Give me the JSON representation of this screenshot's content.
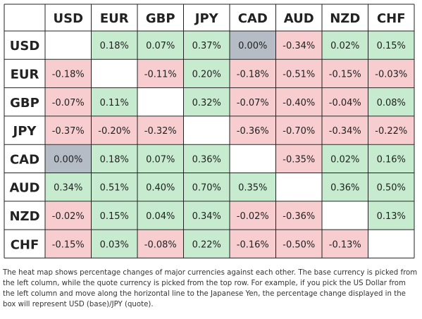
{
  "chart_data": {
    "type": "heatmap",
    "columns": [
      "USD",
      "EUR",
      "GBP",
      "JPY",
      "CAD",
      "AUD",
      "NZD",
      "CHF"
    ],
    "rows": [
      "USD",
      "EUR",
      "GBP",
      "JPY",
      "CAD",
      "AUD",
      "NZD",
      "CHF"
    ],
    "values": [
      [
        null,
        0.18,
        0.07,
        0.37,
        0.0,
        -0.34,
        0.02,
        0.15
      ],
      [
        -0.18,
        null,
        -0.11,
        0.2,
        -0.18,
        -0.51,
        -0.15,
        -0.03
      ],
      [
        -0.07,
        0.11,
        null,
        0.32,
        -0.07,
        -0.4,
        -0.04,
        0.08
      ],
      [
        -0.37,
        -0.2,
        -0.32,
        null,
        -0.36,
        -0.7,
        -0.34,
        -0.22
      ],
      [
        0.0,
        0.18,
        0.07,
        0.36,
        null,
        -0.35,
        0.02,
        0.16
      ],
      [
        0.34,
        0.51,
        0.4,
        0.7,
        0.35,
        null,
        0.36,
        0.5
      ],
      [
        -0.02,
        0.15,
        0.04,
        0.34,
        -0.02,
        -0.36,
        null,
        0.13
      ],
      [
        -0.15,
        0.03,
        -0.08,
        0.22,
        -0.16,
        -0.5,
        -0.13,
        null
      ]
    ],
    "labels": [
      [
        "",
        "0.18%",
        "0.07%",
        "0.37%",
        "0.00%",
        "-0.34%",
        "0.02%",
        "0.15%"
      ],
      [
        "-0.18%",
        "",
        "-0.11%",
        "0.20%",
        "-0.18%",
        "-0.51%",
        "-0.15%",
        "-0.03%"
      ],
      [
        "-0.07%",
        "0.11%",
        "",
        "0.32%",
        "-0.07%",
        "-0.40%",
        "-0.04%",
        "0.08%"
      ],
      [
        "-0.37%",
        "-0.20%",
        "-0.32%",
        "",
        "-0.36%",
        "-0.70%",
        "-0.34%",
        "-0.22%"
      ],
      [
        "0.00%",
        "0.18%",
        "0.07%",
        "0.36%",
        "",
        "-0.35%",
        "0.02%",
        "0.16%"
      ],
      [
        "0.34%",
        "0.51%",
        "0.40%",
        "0.70%",
        "0.35%",
        "",
        "0.36%",
        "0.50%"
      ],
      [
        "-0.02%",
        "0.15%",
        "0.04%",
        "0.34%",
        "-0.02%",
        "-0.36%",
        "",
        "0.13%"
      ],
      [
        "-0.15%",
        "0.03%",
        "-0.08%",
        "0.22%",
        "-0.16%",
        "-0.50%",
        "-0.13%",
        ""
      ]
    ],
    "colors": {
      "positive": "#c6ebcf",
      "negative": "#f7cdcf",
      "zero": "#b6bcc6",
      "empty": "#ffffff",
      "grid": "#222222",
      "text": "#222222"
    }
  },
  "caption": "The heat map shows percentage changes of major currencies against each other. The base currency is picked from the left column, while the quote currency is picked from the top row. For example, if you pick the US Dollar from the left column and move along the horizontal line to the Japanese Yen, the percentage change displayed in the box will represent USD (base)/JPY (quote)."
}
